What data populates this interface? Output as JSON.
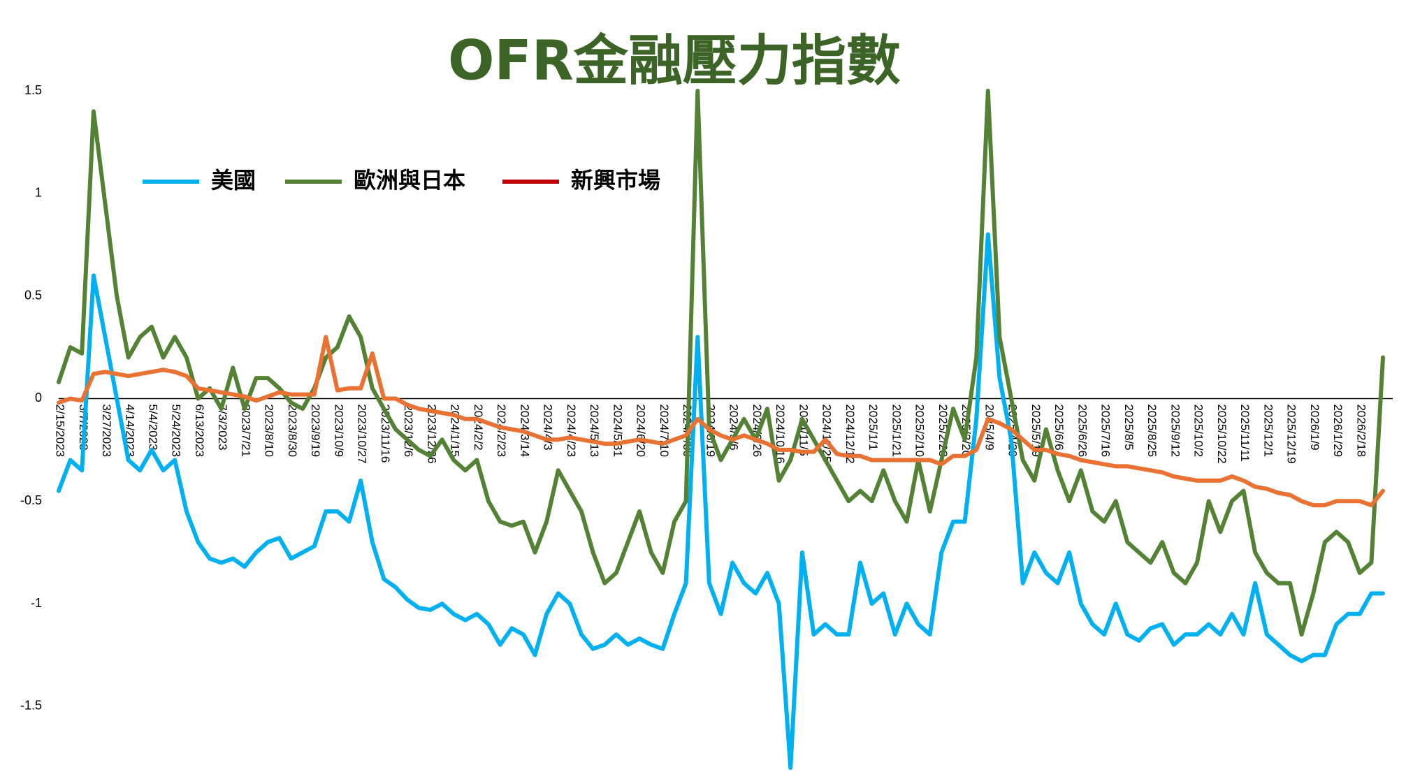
{
  "chart_data": {
    "type": "line",
    "title": "OFR金融壓力指數",
    "categories": [
      "2/15/2023",
      null,
      "3/7/2023",
      null,
      "3/27/2023",
      null,
      "4/14/2023",
      null,
      "5/4/2023",
      null,
      "5/24/2023",
      null,
      "6/13/2023",
      null,
      "7/3/2023",
      null,
      "2023/7/21",
      null,
      "2023/8/10",
      null,
      "2023/8/30",
      null,
      "2023/9/19",
      null,
      "2023/10/9",
      null,
      "2023/10/27",
      null,
      "2023/11/16",
      null,
      "2023/12/6",
      null,
      "2023/12/26",
      null,
      "2024/1/15",
      null,
      "2024/2/2",
      null,
      "2024/2/23",
      null,
      "2024/3/14",
      null,
      "2024/4/3",
      null,
      "2024/4/23",
      null,
      "2024/5/13",
      null,
      "2024/5/31",
      null,
      "2024/6/20",
      null,
      "2024/7/10",
      null,
      "2024/7/30",
      null,
      "2024/8/19",
      null,
      "2024/9/6",
      null,
      "2024/9/26",
      null,
      "2024/10/16",
      null,
      "2024/11/5",
      null,
      "2024/11/25",
      null,
      "2024/12/12",
      null,
      "2025/1/1",
      null,
      "2025/1/21",
      null,
      "2025/2/10",
      null,
      "2025/2/28",
      null,
      "2025/3/20",
      null,
      "2025/4/9",
      null,
      "2025/4/29",
      null,
      "2025/5/19",
      null,
      "2025/6/6",
      null,
      "2025/6/26",
      null,
      "2025/7/16",
      null,
      "2025/8/5",
      null,
      "2025/8/25",
      null,
      "2025/9/12",
      null,
      "2025/10/2",
      null,
      "2025/10/22",
      null,
      "2025/11/11",
      null,
      "2025/12/1",
      null,
      "2025/12/19",
      null,
      "2026/1/9",
      null,
      "2026/1/29",
      null,
      "2026/2/18",
      null,
      null
    ],
    "series": [
      {
        "name": "美國",
        "color": "#00b0f0",
        "values": [
          -0.45,
          -0.3,
          -0.35,
          0.6,
          0.3,
          0.0,
          -0.3,
          -0.35,
          -0.25,
          -0.35,
          -0.3,
          -0.55,
          -0.7,
          -0.78,
          -0.8,
          -0.78,
          -0.82,
          -0.75,
          -0.7,
          -0.68,
          -0.78,
          -0.75,
          -0.72,
          -0.55,
          -0.55,
          -0.6,
          -0.4,
          -0.7,
          -0.88,
          -0.92,
          -0.98,
          -1.02,
          -1.03,
          -1.0,
          -1.05,
          -1.08,
          -1.05,
          -1.1,
          -1.2,
          -1.12,
          -1.15,
          -1.25,
          -1.05,
          -0.95,
          -1.0,
          -1.15,
          -1.22,
          -1.2,
          -1.15,
          -1.2,
          -1.17,
          -1.2,
          -1.22,
          -1.05,
          -0.9,
          0.3,
          -0.9,
          -1.05,
          -0.8,
          -0.9,
          -0.95,
          -0.85,
          -1.0,
          -1.8,
          -0.75,
          -1.15,
          -1.1,
          -1.15,
          -1.15,
          -0.8,
          -1.0,
          -0.95,
          -1.15,
          -1.0,
          -1.1,
          -1.15,
          -0.75,
          -0.6,
          -0.6,
          -0.1,
          0.8,
          0.1,
          -0.2,
          -0.9,
          -0.75,
          -0.85,
          -0.9,
          -0.75,
          -1.0,
          -1.1,
          -1.15,
          -1.0,
          -1.15,
          -1.18,
          -1.12,
          -1.1,
          -1.2,
          -1.15,
          -1.15,
          -1.1,
          -1.15,
          -1.05,
          -1.15,
          -0.9,
          -1.15,
          -1.2,
          -1.25,
          -1.28,
          -1.25,
          -1.25,
          -1.1,
          -1.05,
          -1.05,
          -0.95,
          -0.95
        ]
      },
      {
        "name": "歐洲與日本",
        "color": "#548235",
        "values": [
          0.08,
          0.25,
          0.22,
          1.4,
          0.95,
          0.5,
          0.2,
          0.3,
          0.35,
          0.2,
          0.3,
          0.2,
          0.0,
          0.05,
          -0.05,
          0.15,
          -0.05,
          0.1,
          0.1,
          0.05,
          -0.02,
          -0.05,
          0.05,
          0.2,
          0.25,
          0.4,
          0.3,
          0.05,
          -0.05,
          -0.15,
          -0.2,
          -0.25,
          -0.28,
          -0.2,
          -0.3,
          -0.35,
          -0.3,
          -0.5,
          -0.6,
          -0.62,
          -0.6,
          -0.75,
          -0.6,
          -0.35,
          -0.45,
          -0.55,
          -0.75,
          -0.9,
          -0.85,
          -0.7,
          -0.55,
          -0.75,
          -0.85,
          -0.6,
          -0.5,
          1.5,
          -0.15,
          -0.3,
          -0.2,
          -0.1,
          -0.2,
          -0.05,
          -0.4,
          -0.3,
          -0.1,
          -0.2,
          -0.3,
          -0.4,
          -0.5,
          -0.45,
          -0.5,
          -0.35,
          -0.5,
          -0.6,
          -0.3,
          -0.55,
          -0.3,
          -0.05,
          -0.2,
          0.2,
          1.5,
          0.3,
          0.0,
          -0.3,
          -0.4,
          -0.15,
          -0.35,
          -0.5,
          -0.35,
          -0.55,
          -0.6,
          -0.5,
          -0.7,
          -0.75,
          -0.8,
          -0.7,
          -0.85,
          -0.9,
          -0.8,
          -0.5,
          -0.65,
          -0.5,
          -0.45,
          -0.75,
          -0.85,
          -0.9,
          -0.9,
          -1.15,
          -0.95,
          -0.7,
          -0.65,
          -0.7,
          -0.85,
          -0.8,
          0.2
        ]
      },
      {
        "name": "新興市場",
        "color": "#e97132",
        "legend_color": "#c00000",
        "values": [
          -0.02,
          0.0,
          -0.01,
          0.12,
          0.13,
          0.12,
          0.11,
          0.12,
          0.13,
          0.14,
          0.13,
          0.11,
          0.05,
          0.04,
          0.03,
          0.02,
          0.01,
          -0.01,
          0.01,
          0.03,
          0.02,
          0.02,
          0.02,
          0.3,
          0.04,
          0.05,
          0.05,
          0.22,
          0.0,
          0.0,
          -0.03,
          -0.05,
          -0.06,
          -0.07,
          -0.08,
          -0.1,
          -0.1,
          -0.12,
          -0.14,
          -0.15,
          -0.16,
          -0.18,
          -0.2,
          -0.2,
          -0.19,
          -0.2,
          -0.21,
          -0.22,
          -0.22,
          -0.21,
          -0.2,
          -0.21,
          -0.22,
          -0.2,
          -0.18,
          -0.1,
          -0.15,
          -0.18,
          -0.2,
          -0.18,
          -0.2,
          -0.22,
          -0.25,
          -0.25,
          -0.26,
          -0.26,
          -0.2,
          -0.27,
          -0.28,
          -0.28,
          -0.3,
          -0.3,
          -0.3,
          -0.3,
          -0.3,
          -0.3,
          -0.32,
          -0.28,
          -0.28,
          -0.25,
          -0.1,
          -0.12,
          -0.15,
          -0.2,
          -0.25,
          -0.25,
          -0.27,
          -0.28,
          -0.3,
          -0.31,
          -0.32,
          -0.33,
          -0.33,
          -0.34,
          -0.35,
          -0.36,
          -0.38,
          -0.39,
          -0.4,
          -0.4,
          -0.4,
          -0.38,
          -0.4,
          -0.43,
          -0.44,
          -0.46,
          -0.47,
          -0.5,
          -0.52,
          -0.52,
          -0.5,
          -0.5,
          -0.5,
          -0.52,
          -0.45
        ]
      }
    ],
    "ylim": [
      -1.8,
      1.5
    ],
    "yticks": [
      -1.5,
      -1,
      -0.5,
      0,
      0.5,
      1,
      1.5
    ],
    "grid": false,
    "legend": "top-left",
    "title_color": "#3b6426"
  }
}
